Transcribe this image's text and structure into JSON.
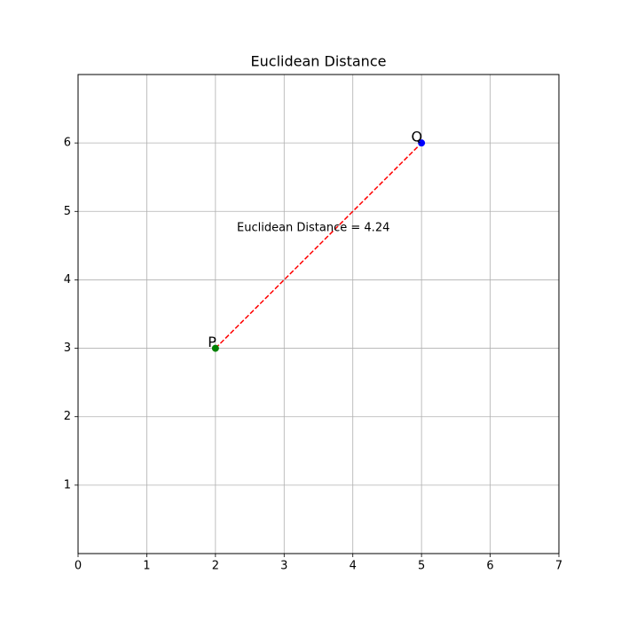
{
  "chart_data": {
    "type": "scatter",
    "title": "Euclidean Distance",
    "series": [
      {
        "name": "P",
        "color": "green",
        "x": [
          2
        ],
        "y": [
          3
        ]
      },
      {
        "name": "Q",
        "color": "blue",
        "x": [
          5
        ],
        "y": [
          6
        ]
      }
    ],
    "segment": {
      "color": "red",
      "dashed": true,
      "x": [
        2,
        5
      ],
      "y": [
        3,
        6
      ]
    },
    "annotation": "Euclidean Distance = 4.24",
    "xlim": [
      0,
      7
    ],
    "ylim": [
      0,
      7
    ],
    "xticks": [
      0,
      1,
      2,
      3,
      4,
      5,
      6,
      7
    ],
    "yticks": [
      1,
      2,
      3,
      4,
      5,
      6
    ],
    "grid": true
  }
}
